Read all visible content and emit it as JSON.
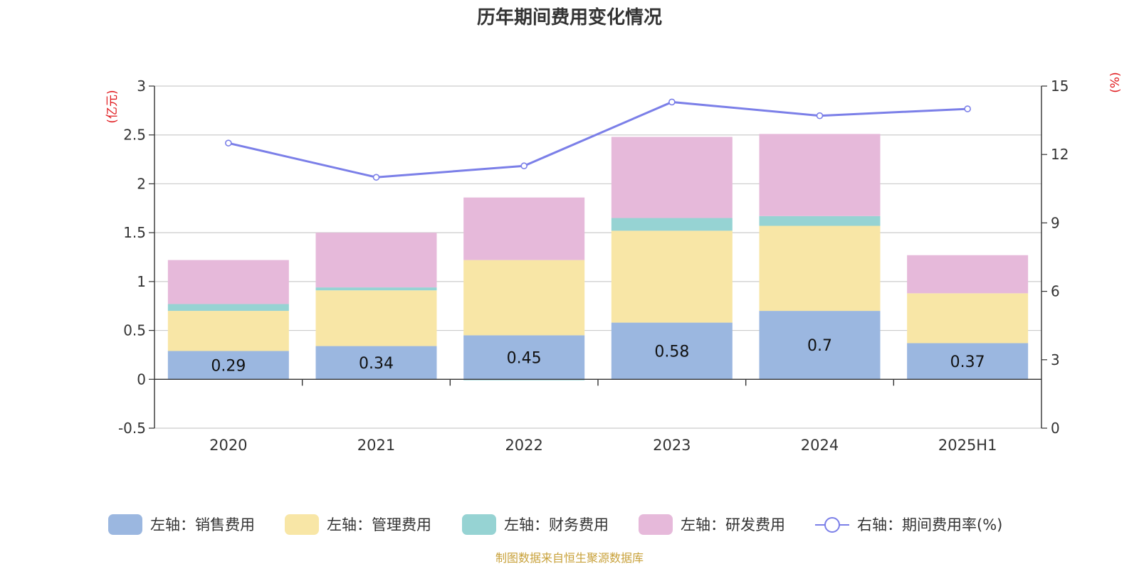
{
  "chart_data": {
    "type": "bar",
    "stacked": true,
    "title": "历年期间费用变化情况",
    "categories": [
      "2020",
      "2021",
      "2022",
      "2023",
      "2024",
      "2025H1"
    ],
    "left_axis": {
      "unit": "(亿元)",
      "ylim": [
        -0.5,
        3
      ],
      "ticks": [
        "-0.5",
        "0",
        "0.5",
        "1",
        "1.5",
        "2",
        "2.5",
        "3"
      ]
    },
    "right_axis": {
      "unit": "(%)",
      "ylim": [
        0,
        15
      ],
      "ticks": [
        "0",
        "3",
        "6",
        "9",
        "12",
        "15"
      ]
    },
    "series": [
      {
        "name": "左轴：销售费用",
        "type": "bar",
        "axis": "left",
        "color": "#9bb7e0",
        "values": [
          0.29,
          0.34,
          0.45,
          0.58,
          0.7,
          0.37
        ],
        "labels": [
          "0.29",
          "0.34",
          "0.45",
          "0.58",
          "0.7",
          "0.37"
        ]
      },
      {
        "name": "左轴：管理费用",
        "type": "bar",
        "axis": "left",
        "color": "#f8e6a6",
        "values": [
          0.41,
          0.57,
          0.77,
          0.94,
          0.87,
          0.51
        ]
      },
      {
        "name": "左轴：财务费用",
        "type": "bar",
        "axis": "left",
        "color": "#96d3d3",
        "values": [
          0.07,
          0.03,
          -0.01,
          0.13,
          0.1,
          0.0
        ]
      },
      {
        "name": "左轴：研发费用",
        "type": "bar",
        "axis": "left",
        "color": "#e6b9da",
        "values": [
          0.45,
          0.56,
          0.64,
          0.83,
          0.84,
          0.39
        ]
      },
      {
        "name": "右轴：期间费用率(%)",
        "type": "line",
        "axis": "right",
        "color": "#7b7fe8",
        "values": [
          12.5,
          11.0,
          11.5,
          14.3,
          13.7,
          14.0
        ]
      }
    ],
    "grid": true,
    "legend_position": "bottom"
  },
  "source": "制图数据来自恒生聚源数据库"
}
